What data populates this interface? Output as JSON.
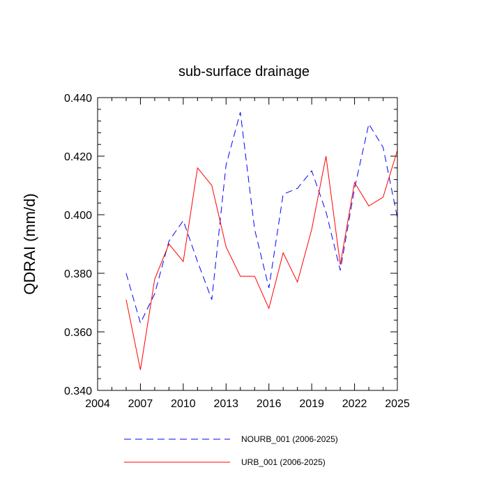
{
  "chart_data": {
    "type": "line",
    "title": "sub-surface drainage",
    "xlabel": "",
    "ylabel": "QDRAI  (mm/d)",
    "xlim": [
      2004,
      2025
    ],
    "ylim": [
      0.34,
      0.44
    ],
    "xticks": [
      2004,
      2007,
      2010,
      2013,
      2016,
      2019,
      2022,
      2025
    ],
    "xtick_labels": [
      "2004",
      "2007",
      "2010",
      "2013",
      "2016",
      "2019",
      "2022",
      "2025"
    ],
    "yticks": [
      0.34,
      0.36,
      0.38,
      0.4,
      0.42,
      0.44
    ],
    "ytick_labels": [
      "0.340",
      "0.360",
      "0.380",
      "0.400",
      "0.420",
      "0.440"
    ],
    "x": [
      2006,
      2007,
      2008,
      2009,
      2010,
      2011,
      2012,
      2013,
      2014,
      2015,
      2016,
      2017,
      2018,
      2019,
      2020,
      2021,
      2022,
      2023,
      2024,
      2025
    ],
    "series": [
      {
        "name": "NOURB_001 (2006-2025)",
        "color": "#0000ff",
        "dash": "dashed",
        "values": [
          0.38,
          0.363,
          0.373,
          0.391,
          0.398,
          0.384,
          0.371,
          0.417,
          0.435,
          0.395,
          0.375,
          0.407,
          0.409,
          0.415,
          0.401,
          0.381,
          0.409,
          0.431,
          0.423,
          0.399
        ]
      },
      {
        "name": "URB_001 (2006-2025)",
        "color": "#ff0000",
        "dash": "solid",
        "values": [
          0.371,
          0.347,
          0.378,
          0.39,
          0.384,
          0.416,
          0.41,
          0.389,
          0.379,
          0.379,
          0.368,
          0.387,
          0.377,
          0.395,
          0.42,
          0.383,
          0.411,
          0.403,
          0.406,
          0.422
        ]
      }
    ],
    "legend_position": "bottom"
  }
}
